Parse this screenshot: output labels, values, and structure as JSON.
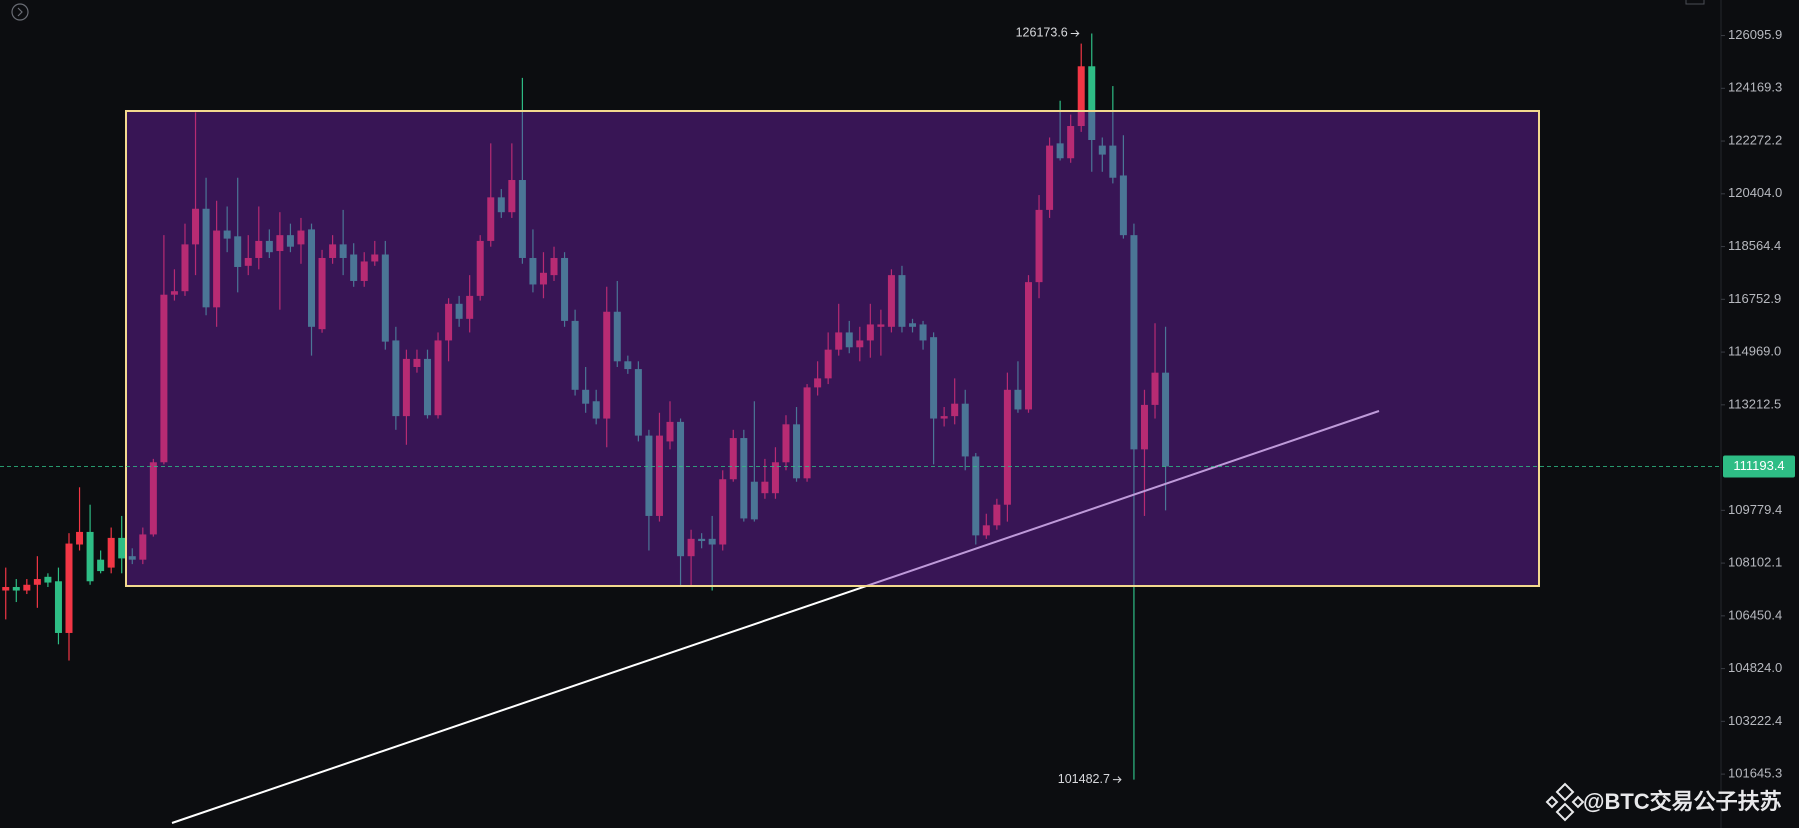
{
  "chart_data": {
    "type": "candlestick",
    "open": [
      107240,
      107350,
      107240,
      107420,
      107670,
      107530,
      105920,
      108690,
      109090,
      108210,
      107960,
      108900,
      108320,
      108210,
      109010,
      111330,
      116910,
      117030,
      118640,
      119880,
      116480,
      119120,
      118920,
      117900,
      118170,
      118760,
      118410,
      118960,
      118640,
      119160,
      115740,
      118170,
      118640,
      118290,
      117380,
      118050,
      118290,
      115360,
      112840,
      114470,
      114740,
      112870,
      115360,
      116600,
      116090,
      116870,
      118760,
      120280,
      119760,
      120890,
      118170,
      117260,
      117580,
      118170,
      116020,
      113710,
      113330,
      112760,
      116330,
      114660,
      114400,
      112200,
      109600,
      112010,
      112650,
      108320,
      108870,
      108870,
      108690,
      110780,
      112120,
      110700,
      110330,
      110330,
      111330,
      112570,
      110810,
      113790,
      114090,
      115050,
      115630,
      115130,
      115360,
      115820,
      115820,
      117580,
      115940,
      115900,
      115470,
      112760,
      112840,
      113250,
      111520,
      108980,
      109300,
      109960,
      113710,
      113060,
      117340,
      119840,
      122190,
      121660,
      122810,
      124970,
      122110,
      122110,
      121050,
      118960,
      111750,
      113210,
      114280
    ],
    "high": [
      107960,
      107600,
      107600,
      108320,
      107780,
      107960,
      109050,
      110520,
      109960,
      108500,
      109230,
      109600,
      108570,
      109230,
      111440,
      118960,
      117780,
      119360,
      123300,
      120970,
      120160,
      119960,
      120970,
      118960,
      119960,
      119160,
      119760,
      119360,
      119560,
      119360,
      118450,
      118960,
      119840,
      118680,
      118370,
      118760,
      118760,
      115820,
      115050,
      115050,
      115050,
      115630,
      116790,
      116870,
      117580,
      118960,
      122190,
      120570,
      122190,
      124550,
      119160,
      118370,
      118560,
      118370,
      116400,
      114470,
      113710,
      117180,
      117380,
      114850,
      114660,
      112390,
      112950,
      113330,
      112760,
      109160,
      109050,
      109600,
      111070,
      112390,
      112390,
      113330,
      111440,
      111820,
      112870,
      113140,
      113900,
      114660,
      115630,
      116600,
      116020,
      115820,
      116600,
      116400,
      117780,
      117900,
      116090,
      116020,
      115630,
      113140,
      114090,
      113710,
      111630,
      109670,
      110150,
      114280,
      114660,
      117580,
      120360,
      122400,
      123720,
      123220,
      125800,
      126173.6,
      122400,
      124250,
      122480,
      119360,
      113710,
      115940,
      115820
    ],
    "low": [
      106340,
      106880,
      107130,
      106700,
      107350,
      105570,
      105070,
      108500,
      107420,
      107780,
      107780,
      107780,
      108070,
      108070,
      108940,
      111260,
      116710,
      116870,
      117580,
      116210,
      115820,
      118370,
      116990,
      117580,
      117780,
      118170,
      116400,
      118370,
      117970,
      114850,
      115620,
      117970,
      117580,
      117180,
      117180,
      117900,
      115050,
      112390,
      111900,
      114280,
      112760,
      112760,
      114660,
      115820,
      115630,
      116710,
      118560,
      119560,
      119560,
      117970,
      116990,
      116790,
      117380,
      115820,
      113520,
      112950,
      112570,
      111820,
      114470,
      114240,
      112010,
      108500,
      109420,
      111750,
      107350,
      107350,
      108570,
      107240,
      108500,
      110700,
      109420,
      109420,
      110150,
      110150,
      111070,
      110700,
      110700,
      113520,
      113900,
      114850,
      114930,
      114660,
      114780,
      114850,
      115630,
      115630,
      115630,
      115050,
      111260,
      112500,
      112570,
      111070,
      108690,
      108870,
      109160,
      109420,
      112950,
      112950,
      116790,
      119560,
      121580,
      121500,
      122600,
      121180,
      121180,
      120770,
      118840,
      101482.7,
      109600,
      112760,
      109780
    ],
    "close": [
      107350,
      107240,
      107420,
      107600,
      107490,
      105920,
      108720,
      109090,
      107530,
      107850,
      108900,
      108250,
      108210,
      109010,
      111330,
      116910,
      117030,
      118640,
      119880,
      116480,
      119120,
      118840,
      117860,
      118170,
      118760,
      118370,
      118960,
      118560,
      119120,
      115820,
      118170,
      118640,
      118170,
      117380,
      118050,
      118290,
      115320,
      112840,
      114740,
      114740,
      112870,
      115360,
      116600,
      116090,
      116870,
      118760,
      120280,
      119760,
      120890,
      118170,
      117260,
      117660,
      118170,
      116020,
      113710,
      113250,
      112760,
      116330,
      114660,
      114400,
      112200,
      109600,
      112200,
      112650,
      108320,
      108870,
      108800,
      108690,
      110780,
      112120,
      109520,
      109490,
      110700,
      111330,
      112570,
      110810,
      113790,
      114090,
      115050,
      115630,
      115130,
      115360,
      115900,
      115900,
      117580,
      115820,
      115820,
      115360,
      112760,
      112840,
      113250,
      111520,
      108980,
      109300,
      109960,
      113710,
      113060,
      117340,
      119840,
      122110,
      121660,
      122810,
      124970,
      122310,
      121790,
      120970,
      118960,
      111750,
      113210,
      114280,
      111193.4
    ],
    "up_color": "#f23645",
    "down_color": "#2ebd85",
    "log_scale": true,
    "ylim": [
      100059,
      127411
    ],
    "yticks": [
      126095.9,
      124169.3,
      122272.2,
      {
        "value": 120404,
        "label": "120404.0"
      },
      118564.4,
      116752.9,
      {
        "value": 114969,
        "label": "114969.0"
      },
      113212.5,
      109779.4,
      108102.1,
      106450.4,
      {
        "value": 104824,
        "label": "104824.0"
      },
      103222.4,
      101645.3
    ],
    "last_price": 111193.4,
    "max_label": 126173.6,
    "min_label": 101482.7,
    "watermark": "@BTC交易公子扶苏"
  }
}
